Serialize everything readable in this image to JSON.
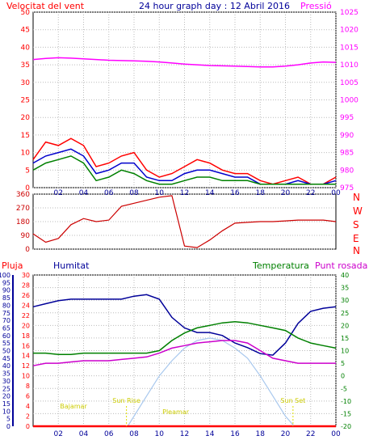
{
  "colors": {
    "wind": "#ff0000",
    "pressure": "#ff00ff",
    "gust": "#ff0000",
    "avg_wind": "#0000cc",
    "low_wind": "#008000",
    "direction": "#cc0000",
    "humidity": "#000099",
    "temperature": "#008000",
    "dew_point": "#cc00cc",
    "solar": "#a8c8ee",
    "rain": "#ff0000",
    "astro": "#ffff00",
    "frame": "#000000",
    "bg": "#ffffff"
  },
  "header": {
    "left_label": "Velocitat del vent",
    "title": "24 hour graph day : 12 Abril 2016",
    "right_label": "Pressió"
  },
  "compass": [
    "N",
    "W",
    "S",
    "E",
    "N"
  ],
  "bottom_labels": {
    "rain": "Pluja",
    "humidity": "Humitat",
    "temperature": "Temperatura",
    "dew_point": "Punt rosada"
  },
  "chart_data": [
    {
      "type": "line",
      "ylim": [
        0,
        50
      ],
      "y2lim": [
        975,
        1025
      ],
      "x_ticks": [
        "02",
        "04",
        "06",
        "08",
        "10",
        "12",
        "14",
        "16",
        "18",
        "20",
        "22",
        "00"
      ],
      "y_ticks": [
        0,
        5,
        10,
        15,
        20,
        25,
        30,
        35,
        40,
        45,
        50
      ],
      "y2_ticks": [
        975,
        980,
        985,
        990,
        995,
        1000,
        1005,
        1010,
        1015,
        1020,
        1025
      ],
      "series": [
        {
          "name": "Pressió",
          "axis": "right",
          "x": [
            0,
            1,
            2,
            3,
            4,
            5,
            6,
            7,
            8,
            9,
            10,
            11,
            12,
            13,
            14,
            15,
            16,
            17,
            18,
            19,
            20,
            21,
            22,
            23,
            24
          ],
          "values": [
            1011.5,
            1011.8,
            1012,
            1011.9,
            1011.7,
            1011.5,
            1011.3,
            1011.2,
            1011.1,
            1011,
            1010.8,
            1010.5,
            1010.2,
            1010,
            1009.8,
            1009.7,
            1009.6,
            1009.5,
            1009.4,
            1009.4,
            1009.6,
            1010,
            1010.5,
            1010.8,
            1010.7
          ]
        },
        {
          "axis": "left",
          "x": [
            0,
            1,
            2,
            3,
            4,
            5,
            6,
            7,
            8,
            9,
            10,
            11,
            12,
            13,
            14,
            15,
            16,
            17,
            18,
            19,
            20,
            21,
            22,
            23,
            24
          ],
          "values": [
            8,
            13,
            12,
            14,
            12,
            6,
            7,
            9,
            10,
            5,
            3,
            4,
            6,
            8,
            7,
            5,
            4,
            4,
            2,
            1,
            2,
            3,
            1,
            1,
            3
          ]
        },
        {
          "axis": "left",
          "x": [
            0,
            1,
            2,
            3,
            4,
            5,
            6,
            7,
            8,
            9,
            10,
            11,
            12,
            13,
            14,
            15,
            16,
            17,
            18,
            19,
            20,
            21,
            22,
            23,
            24
          ],
          "values": [
            7,
            9,
            10,
            11,
            9,
            4,
            5,
            7,
            7,
            3,
            2,
            2,
            4,
            5,
            5,
            4,
            3,
            3,
            1,
            1,
            1,
            2,
            1,
            1,
            2
          ]
        },
        {
          "axis": "left",
          "x": [
            0,
            1,
            2,
            3,
            4,
            5,
            6,
            7,
            8,
            9,
            10,
            11,
            12,
            13,
            14,
            15,
            16,
            17,
            18,
            19,
            20,
            21,
            22,
            23,
            24
          ],
          "values": [
            5,
            7,
            8,
            9,
            7,
            2,
            3,
            5,
            4,
            2,
            1,
            1,
            2,
            3,
            3,
            2,
            2,
            2,
            1,
            1,
            1,
            1,
            1,
            1,
            1
          ]
        }
      ]
    },
    {
      "type": "scatter",
      "ylim": [
        0,
        360
      ],
      "y_ticks": [
        0,
        45,
        90,
        135,
        180,
        225,
        270,
        315,
        360
      ],
      "series": [
        {
          "axis": "left",
          "x": [
            0,
            1,
            2,
            3,
            4,
            5,
            6,
            7,
            8,
            9,
            10,
            11,
            12,
            13,
            14,
            15,
            16,
            17,
            18,
            19,
            20,
            21,
            22,
            23,
            24
          ],
          "values": [
            100,
            45,
            70,
            160,
            200,
            180,
            190,
            280,
            300,
            320,
            340,
            350,
            20,
            10,
            60,
            120,
            170,
            175,
            180,
            180,
            185,
            190,
            190,
            190,
            180
          ]
        }
      ]
    },
    {
      "type": "line",
      "ylim": [
        0,
        30
      ],
      "y_ticks": [
        0,
        2,
        4,
        6,
        8,
        10,
        12,
        14,
        16,
        18,
        20,
        22,
        24,
        26,
        28,
        30
      ],
      "y_left_outer": [
        0,
        5,
        10,
        15,
        20,
        25,
        30,
        35,
        40,
        45,
        50,
        55,
        60,
        65,
        70,
        75,
        80,
        85,
        90,
        95,
        100
      ],
      "y2lim": [
        -20,
        40
      ],
      "y2_ticks": [
        -20,
        -15,
        -10,
        -5,
        0,
        5,
        10,
        15,
        20,
        25,
        30,
        35,
        40
      ],
      "x_ticks": [
        "02",
        "04",
        "06",
        "08",
        "10",
        "12",
        "14",
        "16",
        "18",
        "20",
        "22",
        "00"
      ],
      "series": [
        {
          "name": "Humitat",
          "axis": "outer",
          "x": [
            0,
            1,
            2,
            3,
            4,
            5,
            6,
            7,
            8,
            9,
            10,
            11,
            12,
            13,
            14,
            15,
            16,
            17,
            18,
            19,
            20,
            21,
            22,
            23,
            24
          ],
          "values": [
            79,
            81,
            83,
            84,
            84,
            84,
            84,
            84,
            86,
            87,
            84,
            72,
            65,
            62,
            62,
            60,
            55,
            52,
            48,
            47,
            55,
            68,
            76,
            78,
            79
          ]
        },
        {
          "name": "Temperatura",
          "axis": "right",
          "x": [
            0,
            1,
            2,
            3,
            4,
            5,
            6,
            7,
            8,
            9,
            10,
            11,
            12,
            13,
            14,
            15,
            16,
            17,
            18,
            19,
            20,
            21,
            22,
            23,
            24
          ],
          "values": [
            9,
            9,
            8.5,
            8.5,
            9,
            9,
            9,
            9,
            9,
            9,
            10,
            14,
            17,
            19,
            20,
            21,
            21.5,
            21,
            20,
            19,
            18,
            15,
            13,
            12,
            11
          ]
        },
        {
          "name": "Punt rosada",
          "axis": "right",
          "x": [
            0,
            1,
            2,
            3,
            4,
            5,
            6,
            7,
            8,
            9,
            10,
            11,
            12,
            13,
            14,
            15,
            16,
            17,
            18,
            19,
            20,
            21,
            22,
            23,
            24
          ],
          "values": [
            4,
            5,
            5,
            5.5,
            6,
            6,
            6,
            6.5,
            7,
            7.5,
            9,
            11,
            12,
            13,
            13.5,
            14,
            14,
            13,
            10,
            7,
            6,
            5,
            5,
            5,
            5
          ]
        },
        {
          "axis": "right",
          "x": [
            7.5,
            8,
            9,
            10,
            11,
            12,
            13,
            14,
            15,
            16,
            17,
            18,
            19,
            20,
            20.7
          ],
          "values": [
            -20,
            -16,
            -8,
            0,
            6,
            11,
            14,
            15,
            14,
            11,
            7,
            0,
            -8,
            -16,
            -20
          ]
        },
        {
          "name": "Pluja",
          "axis": "left",
          "x": [
            0,
            24
          ],
          "values": [
            0,
            0
          ]
        }
      ],
      "annotations": [
        "Bajamar",
        "Sun Rise",
        "Pleamar",
        "Sun Set"
      ]
    }
  ]
}
